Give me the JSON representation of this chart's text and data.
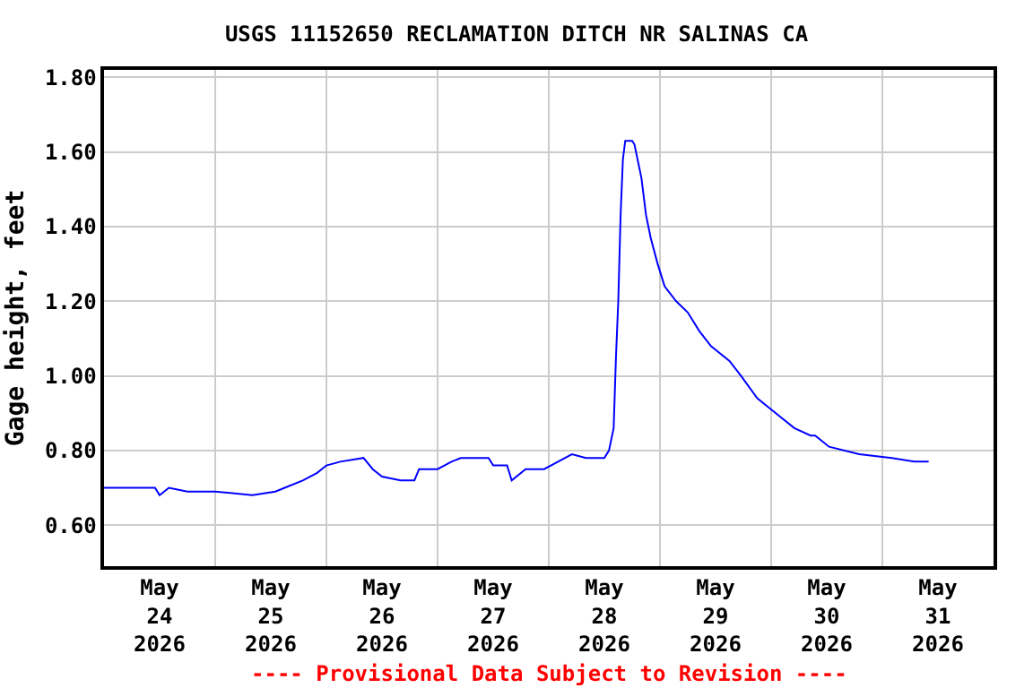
{
  "chart_data": {
    "type": "line",
    "title": "USGS 11152650 RECLAMATION DITCH NR SALINAS CA",
    "ylabel": "Gage height, feet",
    "annotations": [
      "---- Provisional Data Subject to Revision ----"
    ],
    "x": [
      "2026-05-24T00:00",
      "2026-05-24T11:00",
      "2026-05-24T12:00",
      "2026-05-24T14:00",
      "2026-05-24T18:00",
      "2026-05-25T00:00",
      "2026-05-25T08:00",
      "2026-05-25T13:00",
      "2026-05-25T15:00",
      "2026-05-25T19:00",
      "2026-05-25T22:00",
      "2026-05-26T00:00",
      "2026-05-26T03:00",
      "2026-05-26T08:00",
      "2026-05-26T10:00",
      "2026-05-26T12:00",
      "2026-05-26T16:00",
      "2026-05-26T19:00",
      "2026-05-26T20:00",
      "2026-05-27T00:00",
      "2026-05-27T03:00",
      "2026-05-27T05:00",
      "2026-05-27T11:00",
      "2026-05-27T12:00",
      "2026-05-27T15:00",
      "2026-05-27T16:00",
      "2026-05-27T19:00",
      "2026-05-27T23:00",
      "2026-05-28T02:00",
      "2026-05-28T05:00",
      "2026-05-28T08:00",
      "2026-05-28T12:00",
      "2026-05-28T13:00",
      "2026-05-28T14:00",
      "2026-05-28T14:30",
      "2026-05-28T15:00",
      "2026-05-28T15:30",
      "2026-05-28T16:00",
      "2026-05-28T16:30",
      "2026-05-28T18:00",
      "2026-05-28T18:30",
      "2026-05-28T20:00",
      "2026-05-28T21:00",
      "2026-05-28T22:00",
      "2026-05-28T23:30",
      "2026-05-29T01:00",
      "2026-05-29T03:30",
      "2026-05-29T06:00",
      "2026-05-29T08:30",
      "2026-05-29T11:00",
      "2026-05-29T15:00",
      "2026-05-29T17:30",
      "2026-05-29T21:00",
      "2026-05-30T01:00",
      "2026-05-30T05:00",
      "2026-05-30T08:30",
      "2026-05-30T09:30",
      "2026-05-30T12:30",
      "2026-05-30T19:00",
      "2026-05-31T02:00",
      "2026-05-31T07:00",
      "2026-05-31T10:00"
    ],
    "series": [
      {
        "color": "#0000ff",
        "values": [
          0.7,
          0.7,
          0.68,
          0.7,
          0.69,
          0.69,
          0.68,
          0.69,
          0.7,
          0.72,
          0.74,
          0.76,
          0.77,
          0.78,
          0.75,
          0.73,
          0.72,
          0.72,
          0.75,
          0.75,
          0.77,
          0.78,
          0.78,
          0.76,
          0.76,
          0.72,
          0.75,
          0.75,
          0.77,
          0.79,
          0.78,
          0.78,
          0.8,
          0.86,
          1.05,
          1.2,
          1.43,
          1.58,
          1.63,
          1.63,
          1.62,
          1.53,
          1.43,
          1.37,
          1.3,
          1.24,
          1.2,
          1.17,
          1.12,
          1.08,
          1.04,
          1.0,
          0.94,
          0.9,
          0.86,
          0.84,
          0.84,
          0.81,
          0.79,
          0.78,
          0.77,
          0.77
        ]
      }
    ],
    "xlim": [
      "2026-05-24T00:00",
      "2026-06-01T00:00"
    ],
    "xticks": [
      {
        "value": "2026-05-24T12:00",
        "label": "May\n24\n2026"
      },
      {
        "value": "2026-05-25T12:00",
        "label": "May\n25\n2026"
      },
      {
        "value": "2026-05-26T12:00",
        "label": "May\n26\n2026"
      },
      {
        "value": "2026-05-27T12:00",
        "label": "May\n27\n2026"
      },
      {
        "value": "2026-05-28T12:00",
        "label": "May\n28\n2026"
      },
      {
        "value": "2026-05-29T12:00",
        "label": "May\n29\n2026"
      },
      {
        "value": "2026-05-30T12:00",
        "label": "May\n30\n2026"
      },
      {
        "value": "2026-05-31T12:00",
        "label": "May\n31\n2026"
      },
      {
        "value": "2026-05-25T00:00",
        "label": null
      },
      {
        "value": "2026-05-26T00:00",
        "label": null
      },
      {
        "value": "2026-05-27T00:00",
        "label": null
      },
      {
        "value": "2026-05-28T00:00",
        "label": null
      },
      {
        "value": "2026-05-29T00:00",
        "label": null
      },
      {
        "value": "2026-05-30T00:00",
        "label": null
      },
      {
        "value": "2026-05-31T00:00",
        "label": null
      }
    ],
    "ylim": [
      0.49,
      1.82
    ],
    "yticks": [
      {
        "value": 0.6,
        "label": "0.60"
      },
      {
        "value": 0.8,
        "label": "0.80"
      },
      {
        "value": 1.0,
        "label": "1.00"
      },
      {
        "value": 1.2,
        "label": "1.20"
      },
      {
        "value": 1.4,
        "label": "1.40"
      },
      {
        "value": 1.6,
        "label": "1.60"
      },
      {
        "value": 1.8,
        "label": "1.80"
      }
    ],
    "grid": true
  }
}
